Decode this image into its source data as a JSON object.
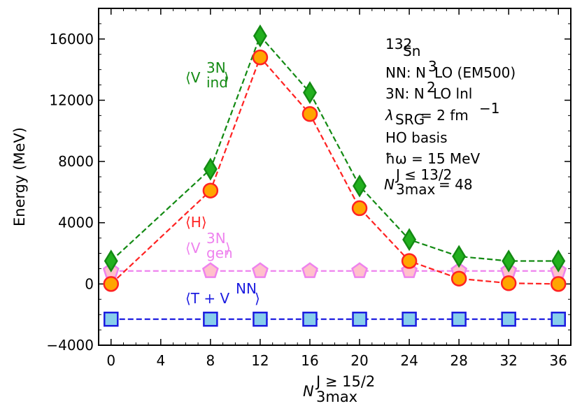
{
  "chart_data": {
    "type": "line",
    "xlabel": "N_3max^{J ≥ 15/2}",
    "ylabel": "Energy (MeV)",
    "xlim": [
      -1,
      37
    ],
    "ylim": [
      -4000,
      18000
    ],
    "xticks": [
      0,
      4,
      8,
      12,
      16,
      20,
      24,
      28,
      32,
      36
    ],
    "yticks": [
      -4000,
      0,
      4000,
      8000,
      12000,
      16000
    ],
    "grid": false,
    "x": [
      0,
      8,
      12,
      16,
      20,
      24,
      28,
      32,
      36
    ],
    "series": [
      {
        "name": "⟨V_ind^3N⟩",
        "color": "#138a13",
        "marker": "diamond",
        "marker_fill": "#22b01e",
        "values": [
          1500,
          7500,
          16200,
          12500,
          6400,
          2900,
          1800,
          1500,
          1500
        ]
      },
      {
        "name": "⟨H⟩",
        "color": "#ff2222",
        "marker": "circle",
        "marker_fill": "#ffa500",
        "values": [
          0,
          6100,
          14800,
          11100,
          4950,
          1500,
          350,
          50,
          0
        ]
      },
      {
        "name": "⟨V_gen^3N⟩",
        "color": "#ee82ee",
        "marker": "pentagon",
        "marker_fill": "#ffc0cb",
        "values": [
          850,
          850,
          850,
          850,
          850,
          850,
          850,
          850,
          850
        ]
      },
      {
        "name": "⟨T + V^NN⟩",
        "color": "#1c1ce0",
        "marker": "square",
        "marker_fill": "#87ceeb",
        "values": [
          -2300,
          -2300,
          -2300,
          -2300,
          -2300,
          -2300,
          -2300,
          -2300,
          -2300
        ]
      }
    ],
    "annotations": [
      "132Sn",
      "NN: N3LO (EM500)",
      "3N: N2LO lnl",
      "λSRG = 2 fm−1",
      "HO basis",
      "ħω = 15 MeV",
      "N3max^{J ≤ 13/2} = 48"
    ]
  },
  "labels": {
    "ylabel": "Energy (MeV)",
    "x_main": "N",
    "x_sup": "J ≥ 15/2",
    "x_sub": "3max",
    "vind_main": "⟨V",
    "vind_sup": "3N",
    "vind_sub": "ind",
    "vind_close": "⟩",
    "h": "⟨H⟩",
    "vgen_main": "⟨V",
    "vgen_sup": "3N",
    "vgen_sub": "gen",
    "vgen_close": "⟩",
    "tv_main": "⟨T + V",
    "tv_sup": "NN",
    "tv_close": "⟩",
    "info_mass": "132",
    "info_sn": "Sn",
    "info_nn_a": "NN: N",
    "info_nn_sup": "3",
    "info_nn_b": "LO (EM500)",
    "info_3n_a": "3N: N",
    "info_3n_sup": "2",
    "info_3n_b": "LO lnl",
    "info_lam": "λ",
    "info_lam_sub": "SRG",
    "info_lam_b": " = 2 fm",
    "info_lam_sup": "−1",
    "info_ho": "HO basis",
    "info_hw": "ħω = 15 MeV",
    "info_n": "N",
    "info_n_sup": "J ≤ 13/2",
    "info_n_sub": "3max",
    "info_n_b": " = 48"
  }
}
